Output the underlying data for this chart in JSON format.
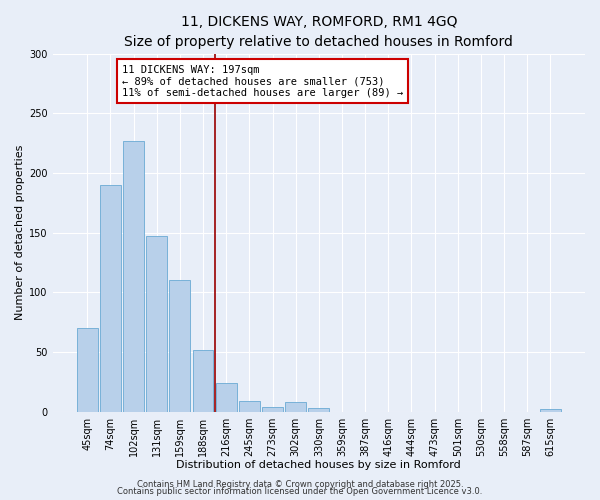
{
  "title": "11, DICKENS WAY, ROMFORD, RM1 4GQ",
  "subtitle": "Size of property relative to detached houses in Romford",
  "xlabel": "Distribution of detached houses by size in Romford",
  "ylabel": "Number of detached properties",
  "bin_labels": [
    "45sqm",
    "74sqm",
    "102sqm",
    "131sqm",
    "159sqm",
    "188sqm",
    "216sqm",
    "245sqm",
    "273sqm",
    "302sqm",
    "330sqm",
    "359sqm",
    "387sqm",
    "416sqm",
    "444sqm",
    "473sqm",
    "501sqm",
    "530sqm",
    "558sqm",
    "587sqm",
    "615sqm"
  ],
  "bar_values": [
    70,
    190,
    227,
    147,
    110,
    52,
    24,
    9,
    4,
    8,
    3,
    0,
    0,
    0,
    0,
    0,
    0,
    0,
    0,
    0,
    2
  ],
  "bar_color": "#b8d0ea",
  "bar_edge_color": "#6aaad4",
  "vline_x": 5.5,
  "vline_color": "#990000",
  "annotation_text": "11 DICKENS WAY: 197sqm\n← 89% of detached houses are smaller (753)\n11% of semi-detached houses are larger (89) →",
  "annotation_box_facecolor": "#ffffff",
  "annotation_box_edgecolor": "#cc0000",
  "ylim": [
    0,
    300
  ],
  "yticks": [
    0,
    50,
    100,
    150,
    200,
    250,
    300
  ],
  "bg_color": "#e8eef8",
  "plot_bg_color": "#e8eef8",
  "footer1": "Contains HM Land Registry data © Crown copyright and database right 2025.",
  "footer2": "Contains public sector information licensed under the Open Government Licence v3.0.",
  "title_fontsize": 10,
  "subtitle_fontsize": 9,
  "axis_label_fontsize": 8,
  "tick_fontsize": 7,
  "annotation_fontsize": 7.5,
  "footer_fontsize": 6
}
